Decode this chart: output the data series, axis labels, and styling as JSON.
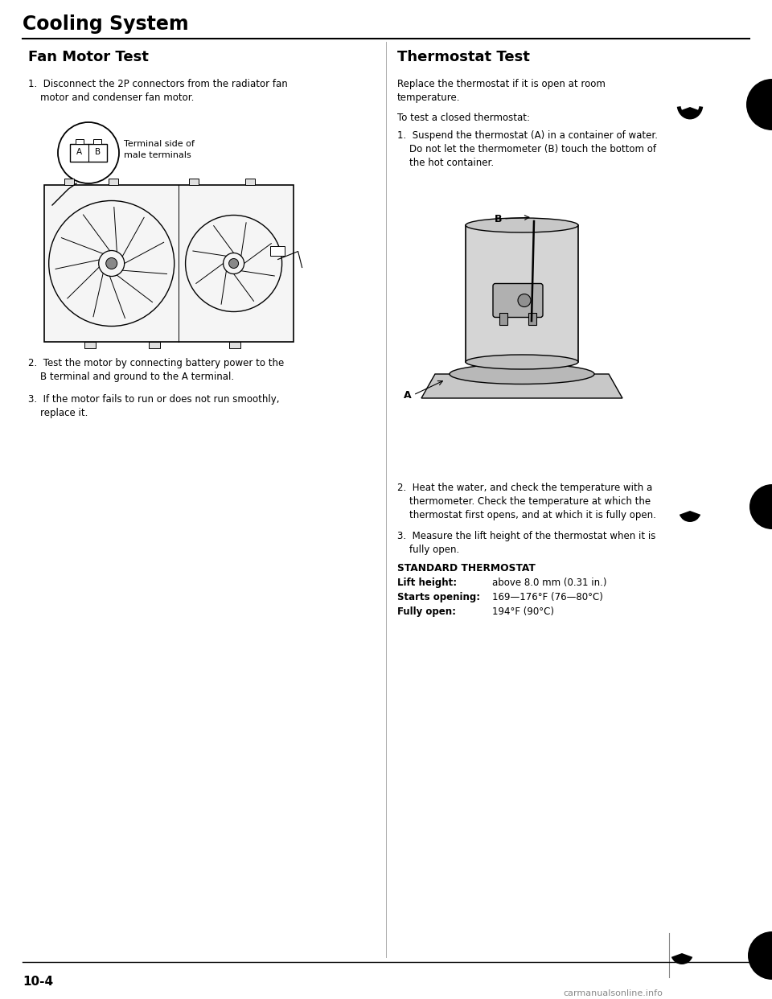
{
  "page_title": "Cooling System",
  "left_section_title": "Fan Motor Test",
  "right_section_title": "Thermostat Test",
  "left_item1": "1.  Disconnect the 2P connectors from the radiator fan\n    motor and condenser fan motor.",
  "left_item2": "2.  Test the motor by connecting battery power to the\n    B terminal and ground to the A terminal.",
  "left_item3": "3.  If the motor fails to run or does not run smoothly,\n    replace it.",
  "right_intro": "Replace the thermostat if it is open at room\ntemperature.",
  "right_intro2": "To test a closed thermostat:",
  "right_item1": "1.  Suspend the thermostat (A) in a container of water.\n    Do not let the thermometer (B) touch the bottom of\n    the hot container.",
  "right_item2": "2.  Heat the water, and check the temperature with a\n    thermometer. Check the temperature at which the\n    thermostat first opens, and at which it is fully open.",
  "right_item3": "3.  Measure the lift height of the thermostat when it is\n    fully open.",
  "standard_title": "STANDARD THERMOSTAT",
  "std_lift_label": "Lift height:",
  "std_lift_value": "above 8.0 mm (0.31 in.)",
  "std_open_label": "Starts opening:",
  "std_open_value": "169—176°F (76—80°C)",
  "std_full_label": "Fully open:",
  "std_full_value": "194°F (90°C)",
  "fan_callout": "Terminal side of\nmale terminals",
  "page_number": "10-4",
  "footer": "carmanualsonline.info",
  "bg_color": "#ffffff",
  "text_color": "#000000",
  "title_color": "#000000"
}
